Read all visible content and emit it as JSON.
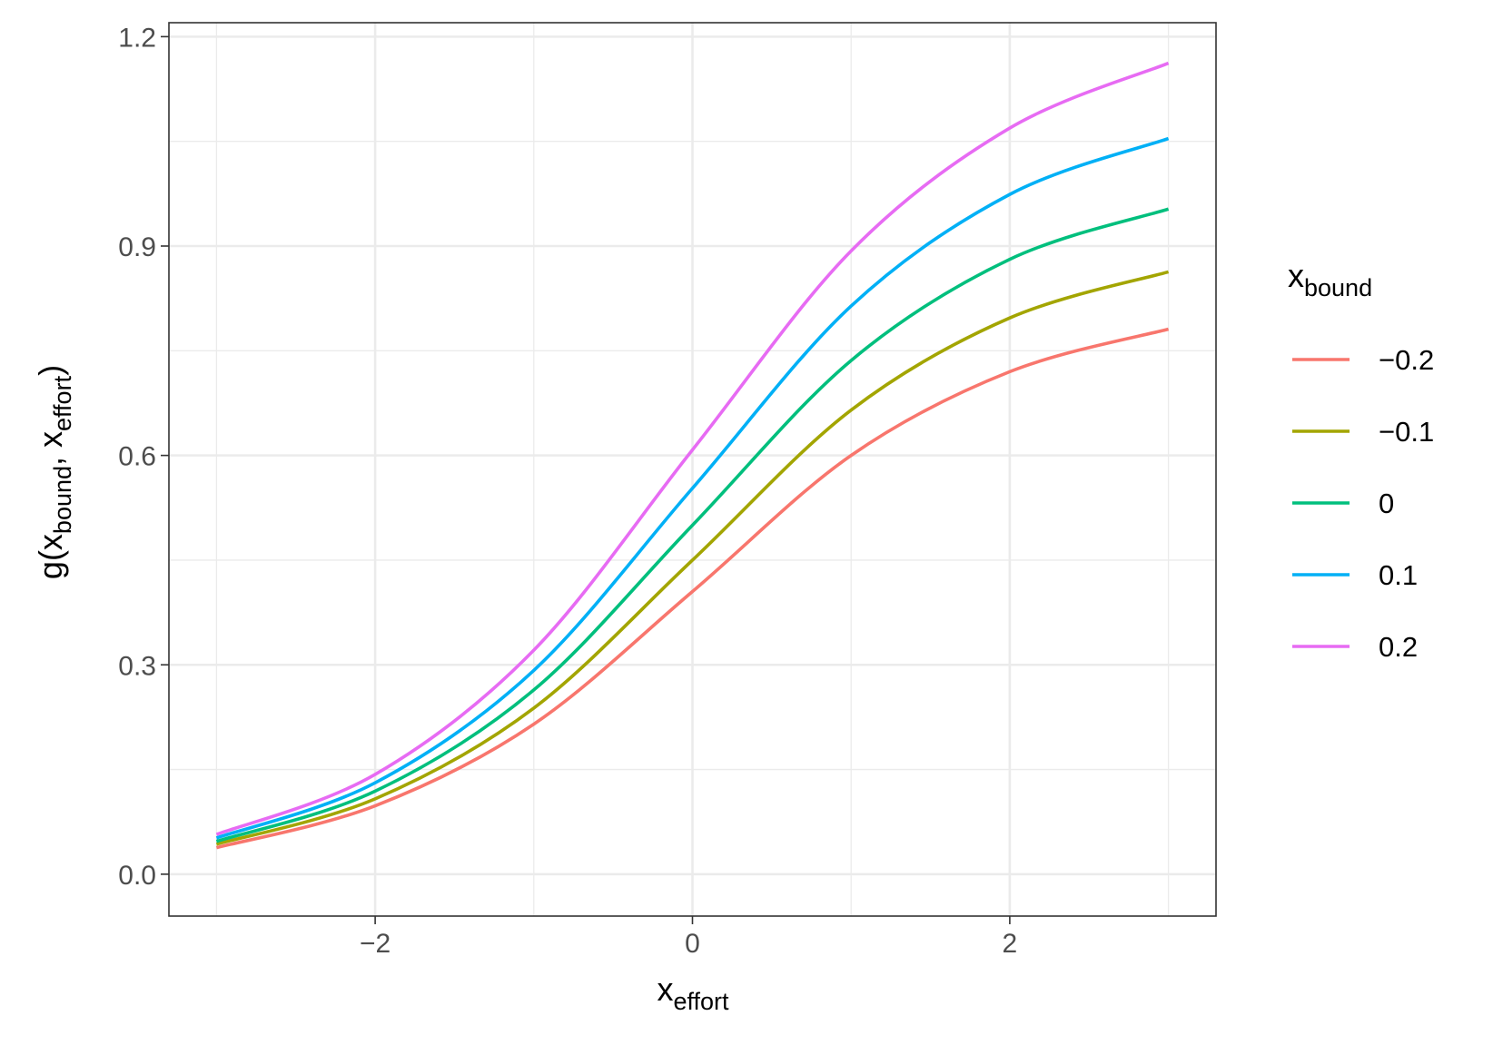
{
  "chart_data": {
    "type": "line",
    "x_domain": [
      -3,
      3
    ],
    "xlim": [
      -3.3,
      3.3
    ],
    "ylim": [
      -0.06,
      1.22
    ],
    "x_ticks": [
      -2,
      0,
      2
    ],
    "x_tick_labels": [
      "−2",
      "0",
      "2"
    ],
    "x_minor_ticks": [
      -3,
      -1,
      1,
      3
    ],
    "y_ticks": [
      0.0,
      0.3,
      0.6,
      0.9,
      1.2
    ],
    "y_tick_labels": [
      "0.0",
      "0.3",
      "0.6",
      "0.9",
      "1.2"
    ],
    "y_minor_ticks": [
      0.15,
      0.45,
      0.75,
      1.05
    ],
    "xlabel": {
      "base": "x",
      "sub": "effort"
    },
    "ylabel": {
      "prefix": "g(x",
      "sub1": "bound",
      "mid": ", x",
      "sub2": "effort",
      "suffix": ")"
    },
    "legend": {
      "title": {
        "base": "x",
        "sub": "bound"
      },
      "position": "right"
    },
    "grid": true,
    "series": [
      {
        "name": "−0.2",
        "bound": -0.2,
        "color": "#F8766D",
        "x": [
          -3,
          -2,
          -1,
          0,
          1,
          2,
          3
        ],
        "y": [
          0.038,
          0.098,
          0.215,
          0.405,
          0.6,
          0.72,
          0.781
        ]
      },
      {
        "name": "−0.1",
        "bound": -0.1,
        "color": "#A3A500",
        "x": [
          -3,
          -2,
          -1,
          0,
          1,
          2,
          3
        ],
        "y": [
          0.043,
          0.108,
          0.238,
          0.45,
          0.665,
          0.797,
          0.863
        ]
      },
      {
        "name": "0",
        "bound": 0,
        "color": "#00BF7D",
        "x": [
          -3,
          -2,
          -1,
          0,
          1,
          2,
          3
        ],
        "y": [
          0.047,
          0.119,
          0.264,
          0.5,
          0.736,
          0.881,
          0.953
        ]
      },
      {
        "name": "0.1",
        "bound": 0.1,
        "color": "#00B0F6",
        "x": [
          -3,
          -2,
          -1,
          0,
          1,
          2,
          3
        ],
        "y": [
          0.052,
          0.131,
          0.292,
          0.553,
          0.814,
          0.974,
          1.054
        ]
      },
      {
        "name": "0.2",
        "bound": 0.2,
        "color": "#E76BF3",
        "x": [
          -3,
          -2,
          -1,
          0,
          1,
          2,
          3
        ],
        "y": [
          0.057,
          0.143,
          0.321,
          0.608,
          0.893,
          1.069,
          1.162
        ]
      }
    ]
  }
}
